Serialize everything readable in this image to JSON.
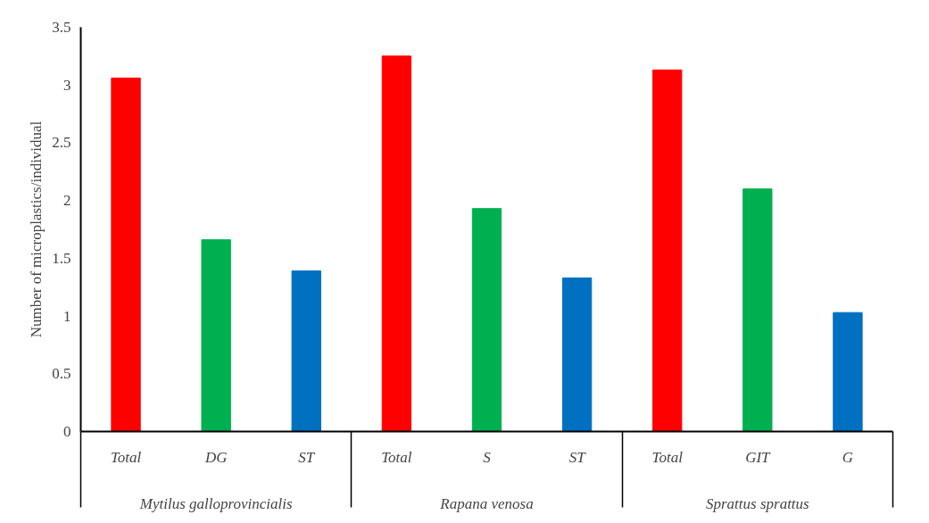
{
  "chart_data": {
    "type": "bar",
    "ylabel": "Number of microplastics/individual",
    "categories": [
      "Total",
      "DG",
      "ST",
      "Total",
      "S",
      "ST",
      "Total",
      "GIT",
      "G"
    ],
    "values": [
      3.06,
      1.66,
      1.39,
      3.25,
      1.93,
      1.33,
      3.13,
      2.1,
      1.03
    ],
    "colors": [
      "#ff0000",
      "#00b050",
      "#0070c0",
      "#ff0000",
      "#00b050",
      "#0070c0",
      "#ff0000",
      "#00b050",
      "#0070c0"
    ],
    "annotations": [
      "Mytilus galloprovincialis",
      "Rapana venosa",
      "Sprattus sprattus"
    ],
    "ylim": [
      0,
      3.5
    ],
    "yticks": [
      0,
      0.5,
      1,
      1.5,
      2,
      2.5,
      3,
      3.5
    ],
    "grid": false
  }
}
